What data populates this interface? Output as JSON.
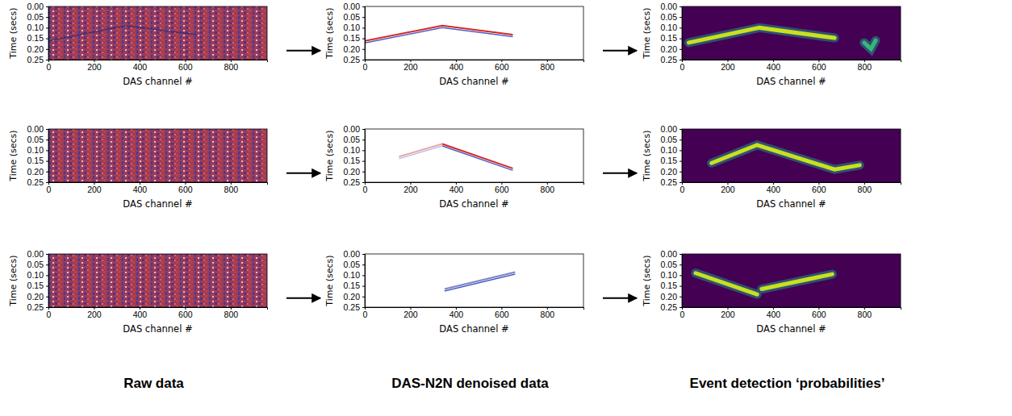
{
  "chart_data": [
    {
      "type": "line",
      "xlabel": "DAS channel #",
      "ylabel": "Time (secs)",
      "color": "#8e3b62",
      "xlim": [
        0,
        960
      ],
      "ylim": [
        0.25,
        0
      ],
      "xticks": [
        0,
        200,
        400,
        600,
        800
      ],
      "yticks": [
        {
          "value": 0,
          "label": "0.00"
        },
        {
          "value": 0.05,
          "label": "0.05"
        },
        {
          "value": 0.1,
          "label": "0.10"
        },
        {
          "value": 0.15,
          "label": "0.15"
        },
        {
          "value": 0.2,
          "label": "0.20"
        },
        {
          "value": 0.25,
          "label": "0.25"
        }
      ],
      "series": [
        {
          "color": "#2a2d7c",
          "x": [
            0,
            340,
            650
          ],
          "values": [
            0.162,
            0.09,
            0.133
          ]
        }
      ]
    },
    {
      "type": "line",
      "xlabel": "DAS channel #",
      "ylabel": "Time (secs)",
      "color": "#ffffff",
      "xlim": [
        0,
        960
      ],
      "ylim": [
        0.25,
        0
      ],
      "xticks": [
        0,
        200,
        400,
        600,
        800
      ],
      "yticks": [
        {
          "value": 0,
          "label": "0.00"
        },
        {
          "value": 0.05,
          "label": "0.05"
        },
        {
          "value": 0.1,
          "label": "0.10"
        },
        {
          "value": 0.15,
          "label": "0.15"
        },
        {
          "value": 0.2,
          "label": "0.20"
        },
        {
          "value": 0.25,
          "label": "0.25"
        }
      ],
      "series": [
        {
          "color": "#d62728",
          "x": [
            0,
            340,
            650
          ],
          "values": [
            0.162,
            0.09,
            0.133
          ]
        }
      ]
    },
    {
      "type": "line",
      "xlabel": "DAS channel #",
      "ylabel": "Time (secs)",
      "color": "#440154",
      "xlim": [
        0,
        960
      ],
      "ylim": [
        0.25,
        0
      ],
      "xticks": [
        0,
        200,
        400,
        600,
        800
      ],
      "yticks": [
        {
          "value": 0,
          "label": "0.00"
        },
        {
          "value": 0.05,
          "label": "0.05"
        },
        {
          "value": 0.1,
          "label": "0.10"
        },
        {
          "value": 0.15,
          "label": "0.15"
        },
        {
          "value": 0.2,
          "label": "0.20"
        },
        {
          "value": 0.25,
          "label": "0.25"
        }
      ],
      "series": [
        {
          "color": "#c8e020",
          "x": [
            30,
            340,
            670
          ],
          "values": [
            0.17,
            0.1,
            0.148
          ]
        },
        {
          "color": "#35b779",
          "x": [
            800,
            830,
            850
          ],
          "values": [
            0.17,
            0.2,
            0.16
          ]
        }
      ]
    },
    {
      "type": "line",
      "xlabel": "DAS channel #",
      "ylabel": "Time (secs)",
      "color": "#8e3b62",
      "xlim": [
        0,
        960
      ],
      "ylim": [
        0.25,
        0
      ],
      "xticks": [
        0,
        200,
        400,
        600,
        800
      ],
      "yticks": [
        {
          "value": 0,
          "label": "0.00"
        },
        {
          "value": 0.05,
          "label": "0.05"
        },
        {
          "value": 0.1,
          "label": "0.10"
        },
        {
          "value": 0.15,
          "label": "0.15"
        },
        {
          "value": 0.2,
          "label": "0.20"
        },
        {
          "value": 0.25,
          "label": "0.25"
        }
      ],
      "series": []
    },
    {
      "type": "line",
      "xlabel": "DAS channel #",
      "ylabel": "Time (secs)",
      "color": "#ffffff",
      "xlim": [
        0,
        960
      ],
      "ylim": [
        0.25,
        0
      ],
      "xticks": [
        0,
        200,
        400,
        600,
        800
      ],
      "yticks": [
        {
          "value": 0,
          "label": "0.00"
        },
        {
          "value": 0.05,
          "label": "0.05"
        },
        {
          "value": 0.1,
          "label": "0.10"
        },
        {
          "value": 0.15,
          "label": "0.15"
        },
        {
          "value": 0.2,
          "label": "0.20"
        },
        {
          "value": 0.25,
          "label": "0.25"
        }
      ],
      "series": [
        {
          "color": "#d62728",
          "x": [
            340,
            650
          ],
          "values": [
            0.07,
            0.185
          ]
        },
        {
          "color": "#e8a7a7",
          "x": [
            150,
            340
          ],
          "values": [
            0.13,
            0.07
          ]
        }
      ]
    },
    {
      "type": "line",
      "xlabel": "DAS channel #",
      "ylabel": "Time (secs)",
      "color": "#440154",
      "xlim": [
        0,
        960
      ],
      "ylim": [
        0.25,
        0
      ],
      "xticks": [
        0,
        200,
        400,
        600,
        800
      ],
      "yticks": [
        {
          "value": 0,
          "label": "0.00"
        },
        {
          "value": 0.05,
          "label": "0.05"
        },
        {
          "value": 0.1,
          "label": "0.10"
        },
        {
          "value": 0.15,
          "label": "0.15"
        },
        {
          "value": 0.2,
          "label": "0.20"
        },
        {
          "value": 0.25,
          "label": "0.25"
        }
      ],
      "series": [
        {
          "color": "#c8e020",
          "x": [
            130,
            330,
            670,
            780
          ],
          "values": [
            0.16,
            0.075,
            0.19,
            0.17
          ]
        }
      ]
    },
    {
      "type": "line",
      "xlabel": "DAS channel #",
      "ylabel": "Time (secs)",
      "color": "#8e3b62",
      "xlim": [
        0,
        960
      ],
      "ylim": [
        0.25,
        0
      ],
      "xticks": [
        0,
        200,
        400,
        600,
        800
      ],
      "yticks": [
        {
          "value": 0,
          "label": "0.00"
        },
        {
          "value": 0.05,
          "label": "0.05"
        },
        {
          "value": 0.1,
          "label": "0.10"
        },
        {
          "value": 0.15,
          "label": "0.15"
        },
        {
          "value": 0.2,
          "label": "0.20"
        },
        {
          "value": 0.25,
          "label": "0.25"
        }
      ],
      "series": []
    },
    {
      "type": "line",
      "xlabel": "DAS channel #",
      "ylabel": "Time (secs)",
      "color": "#ffffff",
      "xlim": [
        0,
        960
      ],
      "ylim": [
        0.25,
        0
      ],
      "xticks": [
        0,
        200,
        400,
        600,
        800
      ],
      "yticks": [
        {
          "value": 0,
          "label": "0.00"
        },
        {
          "value": 0.05,
          "label": "0.05"
        },
        {
          "value": 0.1,
          "label": "0.10"
        },
        {
          "value": 0.15,
          "label": "0.15"
        },
        {
          "value": 0.2,
          "label": "0.20"
        },
        {
          "value": 0.25,
          "label": "0.25"
        }
      ],
      "series": [
        {
          "color": "#7b86c4",
          "x": [
            350,
            660
          ],
          "values": [
            0.165,
            0.085
          ]
        }
      ]
    },
    {
      "type": "line",
      "xlabel": "DAS channel #",
      "ylabel": "Time (secs)",
      "color": "#440154",
      "xlim": [
        0,
        960
      ],
      "ylim": [
        0.25,
        0
      ],
      "xticks": [
        0,
        200,
        400,
        600,
        800
      ],
      "yticks": [
        {
          "value": 0,
          "label": "0.00"
        },
        {
          "value": 0.05,
          "label": "0.05"
        },
        {
          "value": 0.1,
          "label": "0.10"
        },
        {
          "value": 0.15,
          "label": "0.15"
        },
        {
          "value": 0.2,
          "label": "0.20"
        },
        {
          "value": 0.25,
          "label": "0.25"
        }
      ],
      "series": [
        {
          "color": "#c8e020",
          "x": [
            60,
            330,
            340,
            350,
            660
          ],
          "values": [
            0.09,
            0.19,
            null,
            0.165,
            0.095
          ]
        }
      ]
    }
  ],
  "captions": [
    "Raw data",
    "DAS-N2N denoised data",
    "Event detection ‘probabilities’"
  ]
}
